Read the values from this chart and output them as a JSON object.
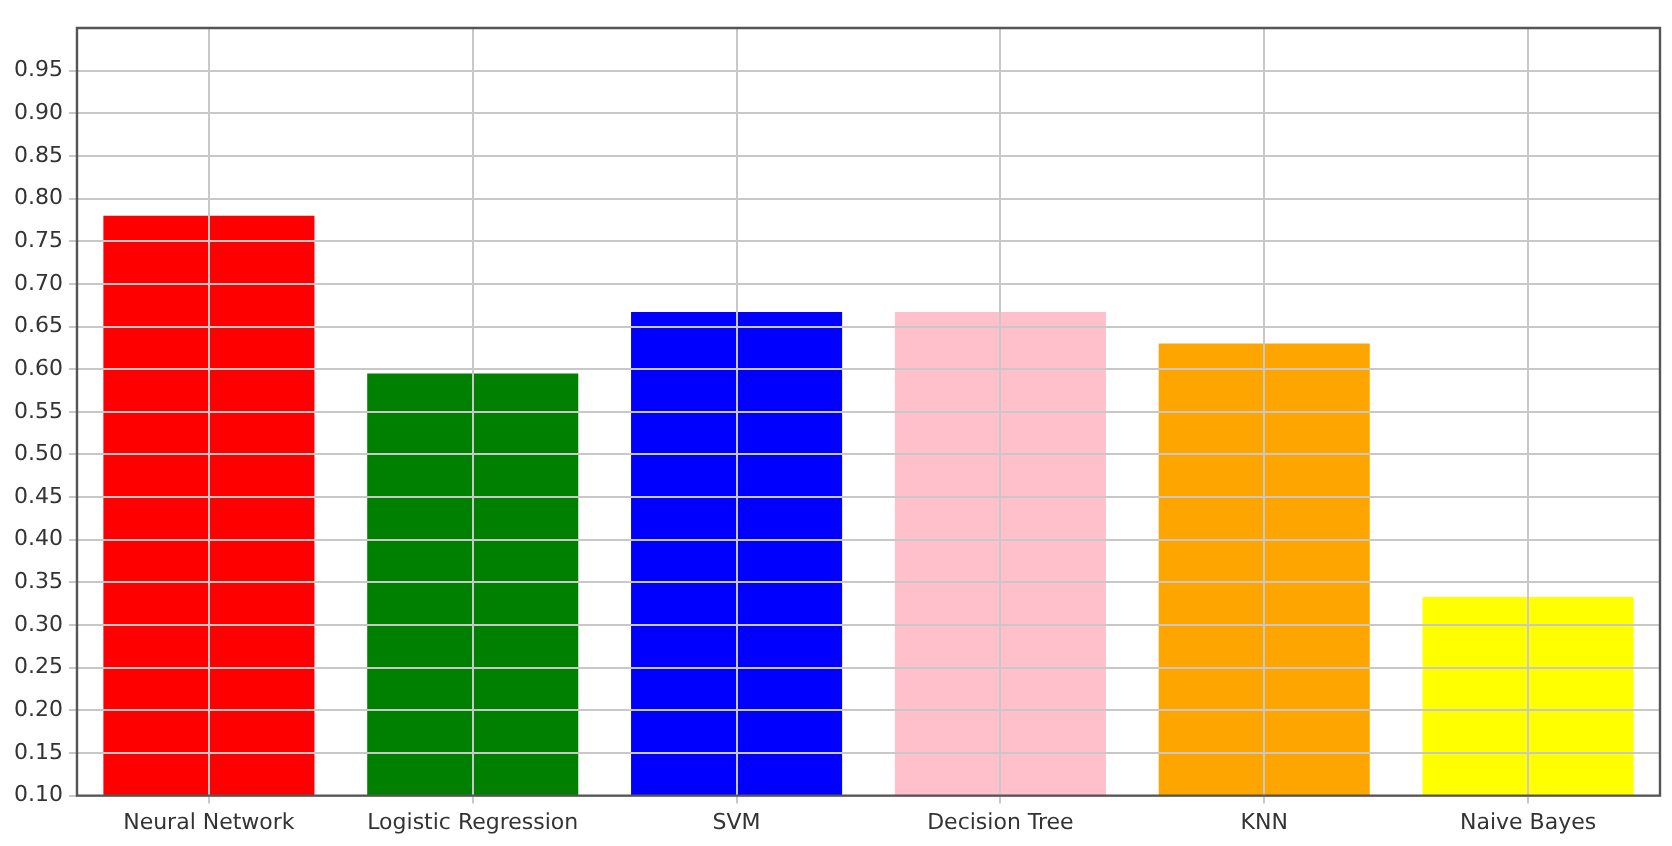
{
  "chart_data": {
    "type": "bar",
    "categories": [
      "Neural Network",
      "Logistic Regression",
      "SVM",
      "Decision Tree",
      "KNN",
      "Naive Bayes"
    ],
    "values": [
      0.78,
      0.595,
      0.667,
      0.667,
      0.63,
      0.333
    ],
    "colors": [
      "#ff0000",
      "#008000",
      "#0000ff",
      "#ffc0cb",
      "#ffa500",
      "#ffff00"
    ],
    "ylim": [
      0.1,
      1.0
    ],
    "yticks": [
      {
        "value": 0.1,
        "label": "0.10"
      },
      0.15,
      {
        "value": 0.2,
        "label": "0.20"
      },
      0.25,
      {
        "value": 0.3,
        "label": "0.30"
      },
      0.35,
      {
        "value": 0.4,
        "label": "0.40"
      },
      0.45,
      {
        "value": 0.5,
        "label": "0.50"
      },
      0.55,
      {
        "value": 0.6,
        "label": "0.60"
      },
      0.65,
      {
        "value": 0.7,
        "label": "0.70"
      },
      0.75,
      {
        "value": 0.8,
        "label": "0.80"
      },
      0.85,
      {
        "value": 0.9,
        "label": "0.90"
      },
      0.95
    ],
    "grid": true,
    "legend": false
  }
}
